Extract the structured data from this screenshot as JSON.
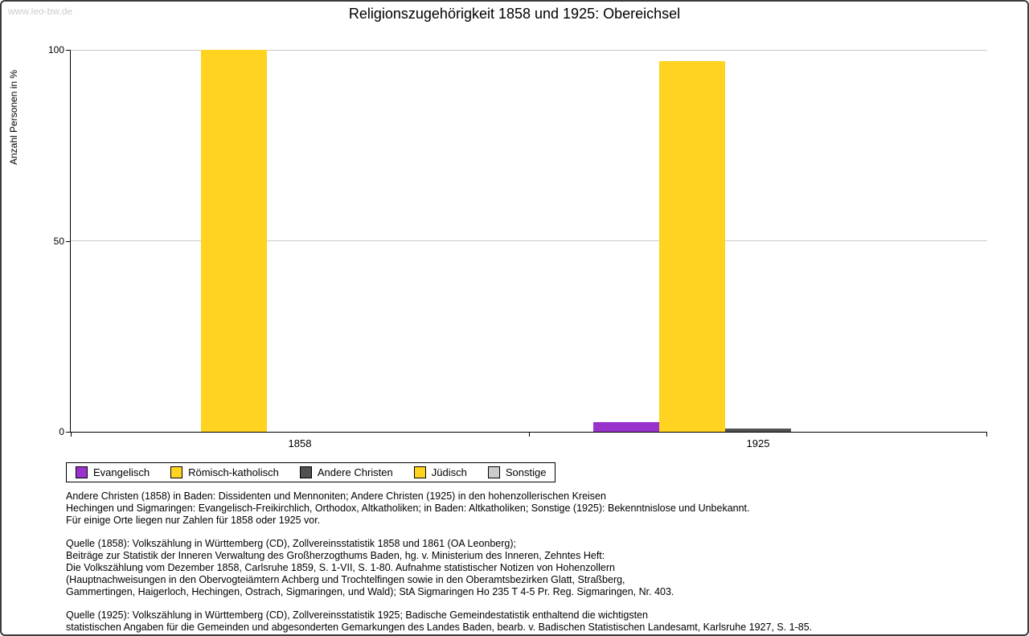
{
  "page": {
    "watermark": "www.leo-bw.de",
    "title": "Religionszugehörigkeit 1858 und 1925: Obereichsel"
  },
  "chart_data": {
    "type": "bar",
    "title": "Religionszugehörigkeit 1858 und 1925: Obereichsel",
    "xlabel": "",
    "ylabel": "Anzahl Personen in %",
    "ylim": [
      0,
      100
    ],
    "yticks": [
      0,
      50,
      100
    ],
    "grid": true,
    "legend_position": "bottom",
    "categories": [
      "1858",
      "1925"
    ],
    "series": [
      {
        "name": "Evangelisch",
        "color": "#9933CC",
        "values": [
          0,
          2.5
        ]
      },
      {
        "name": "Römisch-katholisch",
        "color": "#FFD320",
        "values": [
          100,
          97
        ]
      },
      {
        "name": "Andere Christen",
        "color": "#515151",
        "values": [
          0,
          0.8
        ]
      },
      {
        "name": "Jüdisch",
        "color": "#FFD320",
        "values": [
          0,
          0
        ]
      },
      {
        "name": "Sonstige",
        "color": "#CCCCCC",
        "values": [
          0,
          0
        ]
      }
    ]
  },
  "footnotes": {
    "para1": "Andere Christen (1858) in Baden: Dissidenten und Mennoniten; Andere Christen (1925) in den hohenzollerischen Kreisen\nHechingen und Sigmaringen: Evangelisch-Freikirchlich, Orthodox, Altkatholiken; in Baden: Altkatholiken; Sonstige (1925): Bekenntnislose und Unbekannt.\nFür einige Orte liegen nur Zahlen für 1858 oder 1925 vor.",
    "para2": "Quelle (1858): Volkszählung in Württemberg (CD), Zollvereinsstatistik 1858 und 1861 (OA Leonberg);\nBeiträge zur Statistik der Inneren Verwaltung des Großherzogthums Baden, hg. v. Ministerium des Inneren, Zehntes Heft:\nDie Volkszählung vom Dezember 1858, Carlsruhe 1859, S. 1-VII, S. 1-80. Aufnahme statistischer Notizen von Hohenzollern\n(Hauptnachweisungen in den Obervogteiämtern Achberg und Trochtelfingen sowie in den Oberamtsbezirken Glatt, Straßberg,\nGammertingen, Haigerloch, Hechingen, Ostrach, Sigmaringen, und Wald); StA Sigmaringen Ho 235 T 4-5 Pr. Reg. Sigmaringen, Nr. 403.",
    "para3": "Quelle (1925): Volkszählung in Württemberg (CD), Zollvereinsstatistik 1925; Badische Gemeindestatistik enthaltend die wichtigsten\nstatistischen Angaben für die Gemeinden und abgesonderten Gemarkungen des Landes Baden, bearb. v. Badischen Statistischen Landesamt, Karlsruhe 1927, S. 1-85."
  }
}
